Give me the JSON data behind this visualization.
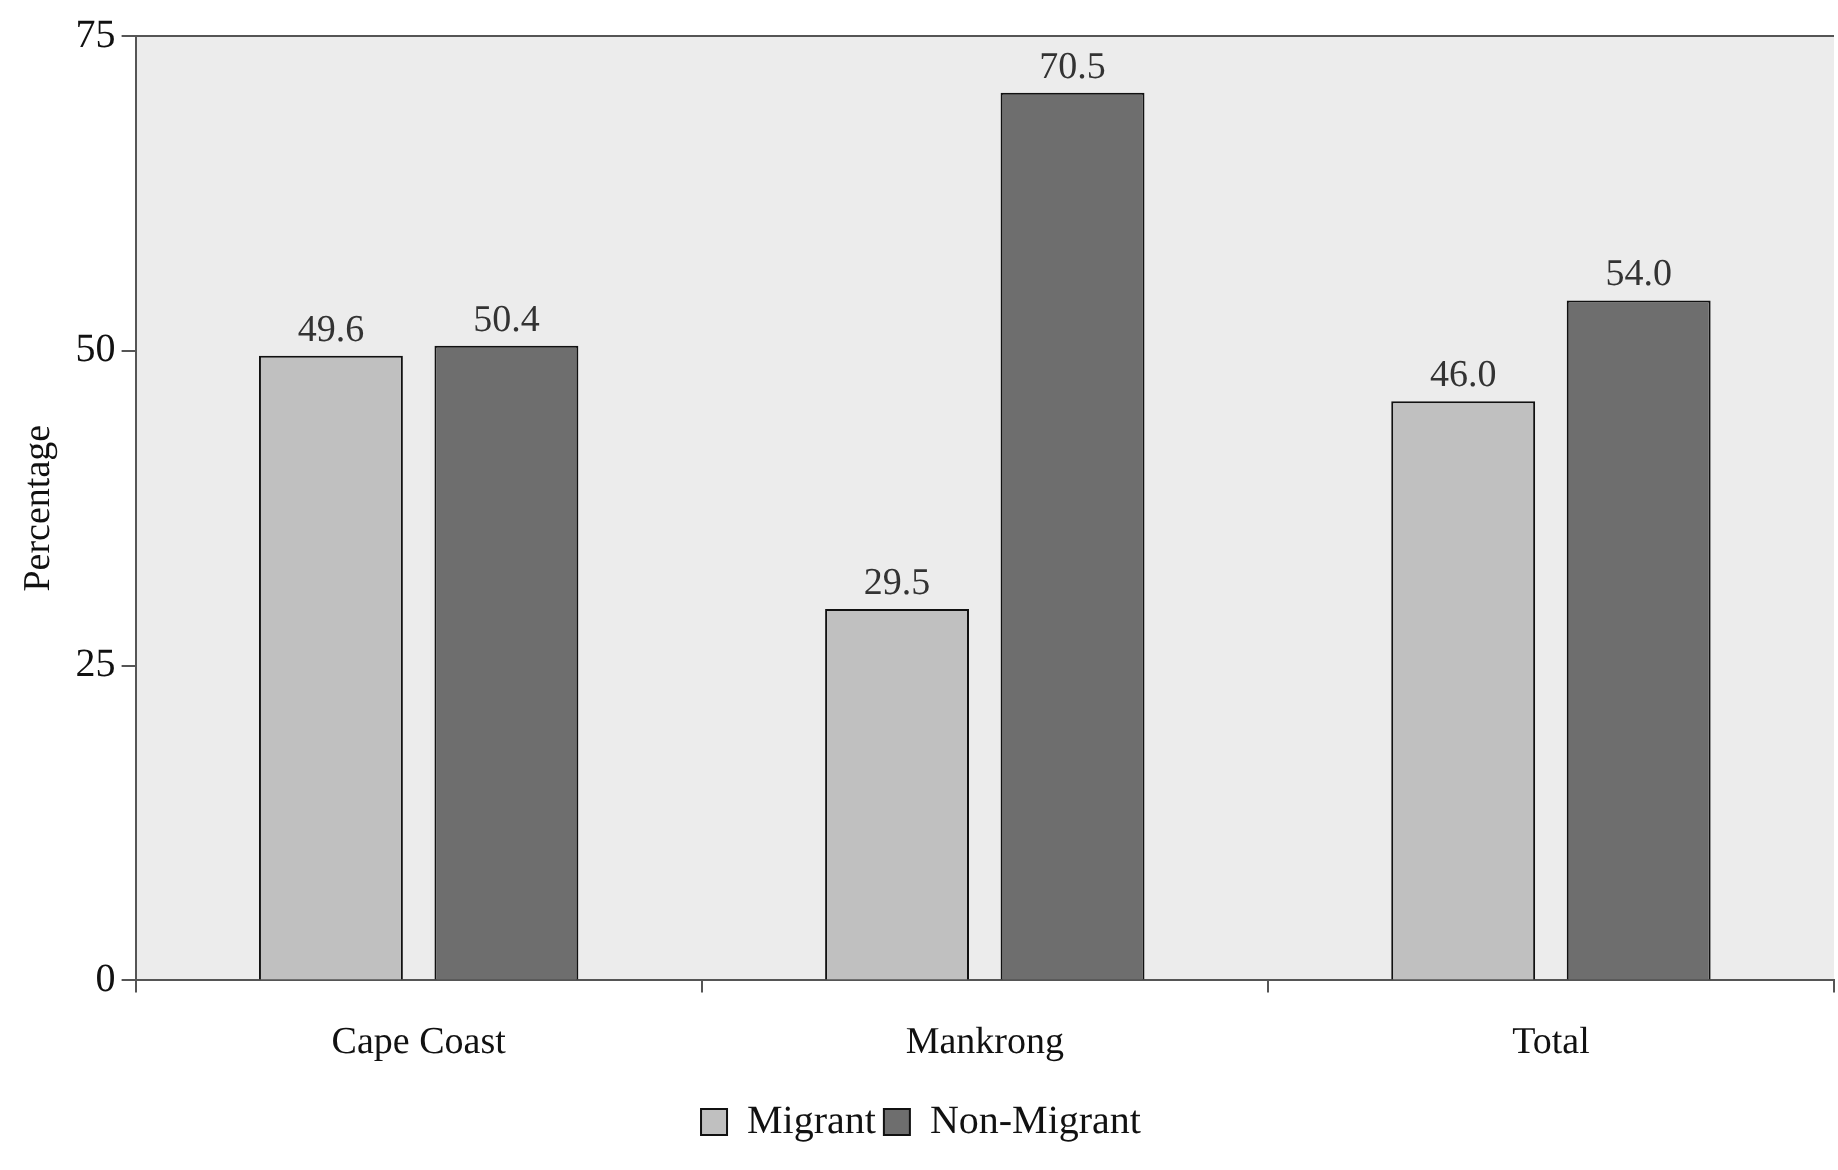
{
  "chart_data": {
    "type": "bar",
    "ylabel": "Percentage",
    "categories": [
      "Cape Coast",
      "Mankrong",
      "Total"
    ],
    "series": [
      {
        "name": "Migrant",
        "color": "#c0c0c0",
        "values": [
          49.6,
          29.5,
          46.0
        ],
        "value_labels": [
          "49.6",
          "29.5",
          "46.0"
        ]
      },
      {
        "name": "Non-Migrant",
        "color": "#6e6e6e",
        "values": [
          50.4,
          70.5,
          54.0
        ],
        "value_labels": [
          "50.4",
          "70.5",
          "54.0"
        ]
      }
    ],
    "ylim": [
      0,
      75
    ],
    "yticks": [
      0,
      25,
      50,
      75
    ],
    "grid": false,
    "legend": "bottom"
  }
}
